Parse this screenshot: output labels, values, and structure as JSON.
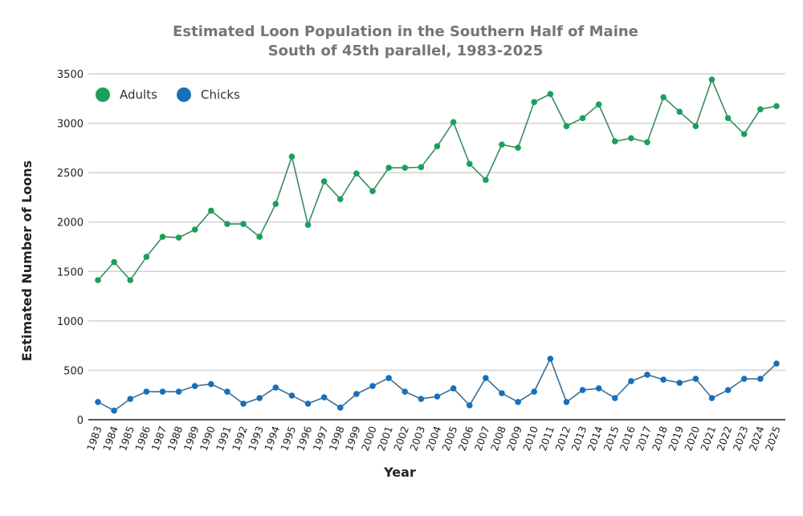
{
  "chart_data": {
    "type": "line",
    "title": "Estimated Loon Population in the Southern Half of Maine",
    "subtitle": "South of 45th parallel, 1983-2025",
    "xlabel": "Year",
    "ylabel": "Estimated Number of Loons",
    "ylim": [
      0,
      3500
    ],
    "yticks": [
      "0",
      "500",
      "1000",
      "1500",
      "2000",
      "2500",
      "3000",
      "3500"
    ],
    "grid": true,
    "legend_placement": "top-left",
    "x": [
      "1983",
      "1984",
      "1985",
      "1986",
      "1987",
      "1988",
      "1989",
      "1990",
      "1991",
      "1992",
      "1993",
      "1994",
      "1995",
      "1996",
      "1997",
      "1998",
      "1999",
      "2000",
      "2001",
      "2002",
      "2003",
      "2004",
      "2005",
      "2006",
      "2007",
      "2008",
      "2009",
      "2010",
      "2011",
      "2012",
      "2013",
      "2014",
      "2015",
      "2016",
      "2017",
      "2018",
      "2019",
      "2020",
      "2021",
      "2022",
      "2023",
      "2024",
      "2025"
    ],
    "series": [
      {
        "name": "Adults",
        "color": "#1aa05a",
        "values": [
          1412,
          1595,
          1412,
          1648,
          1851,
          1843,
          1924,
          2115,
          1981,
          1981,
          1851,
          2183,
          2662,
          1972,
          2411,
          2232,
          2492,
          2313,
          2549,
          2549,
          2555,
          2768,
          3011,
          2589,
          2427,
          2784,
          2752,
          3214,
          3296,
          2971,
          3052,
          3190,
          2817,
          2849,
          2808,
          3263,
          3117,
          2971,
          3442,
          3052,
          2890,
          3141,
          3174
        ]
      },
      {
        "name": "Chicks",
        "color": "#1a6fb8",
        "values": [
          179,
          92,
          211,
          284,
          284,
          284,
          341,
          360,
          284,
          162,
          219,
          325,
          244,
          162,
          227,
          122,
          260,
          341,
          422,
          284,
          211,
          235,
          317,
          146,
          422,
          268,
          179,
          284,
          617,
          179,
          300,
          317,
          219,
          390,
          455,
          406,
          373,
          414,
          219,
          300,
          414,
          414,
          568
        ]
      }
    ]
  }
}
